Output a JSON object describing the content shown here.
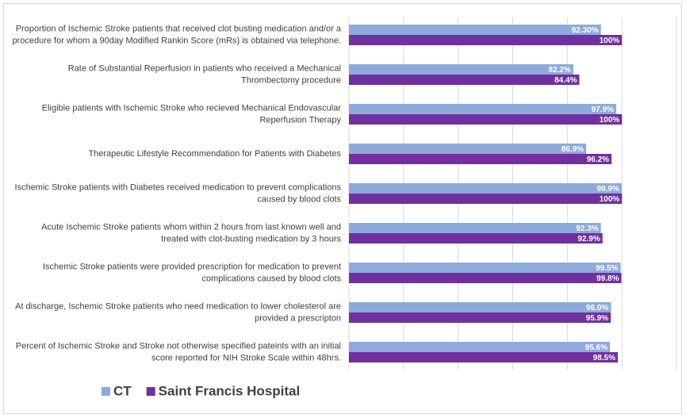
{
  "chart_data": {
    "type": "hbar",
    "categories": [
      [
        "Proportion of Ischemic Stroke patients that received clot busting medication and/or a",
        "procedure for whom a 90day Modified Rankin Score (mRs) is obtained via telephone."
      ],
      [
        "Rate of Substantial Reperfusion in patients who received a Mechanical",
        "Thrombectomy procedure"
      ],
      [
        "Eligible patients with Ischemic Stroke who recieved Mechanical Endovascular",
        "Reperfusion Therapy"
      ],
      [
        "Therapeutic Lifestyle Recommendation for Patients with Diabetes"
      ],
      [
        "Ischemic Stroke patients with Diabetes received medication to prevent complications",
        "caused by blood clots"
      ],
      [
        "Acute Ischemic Stroke patients whom within 2 hours from last known well and",
        "treated with clot-busting medication by 3 hours"
      ],
      [
        "Ischemic Stroke patients were provided prescription for medication to prevent",
        "complications caused by blood clots"
      ],
      [
        "At discharge, Ischemic Stroke patients who need medication to lower cholesterol are",
        "provided a prescripton"
      ],
      [
        "Percent of Ischemic Stroke and Stroke not otherwise specified pateints with an initial",
        "score reported for NIH Stroke Scale within 48hrs."
      ]
    ],
    "series": [
      {
        "name": "CT",
        "color": "#8eaadb",
        "values": [
          92.3,
          82.2,
          97.9,
          86.9,
          99.9,
          92.3,
          99.5,
          96.0,
          95.6
        ],
        "value_labels": [
          "92.30%",
          "82.2%",
          "97.9%",
          "86.9%",
          "99.9%",
          "92.3%",
          "99.5%",
          "96.0%",
          "95.6%"
        ]
      },
      {
        "name": "Saint Francis Hospital",
        "color": "#7030a0",
        "values": [
          100,
          84.4,
          100,
          96.2,
          100,
          92.9,
          99.8,
          95.9,
          98.5
        ],
        "value_labels": [
          "100%",
          "84.4%",
          "100%",
          "96.2%",
          "100%",
          "92.9%",
          "99.8%",
          "95.9%",
          "98.5%"
        ]
      }
    ],
    "xlim": [
      0,
      120
    ],
    "xticks": [
      0,
      20,
      40,
      60,
      80,
      100,
      120
    ],
    "grid": true,
    "legend": "bottom-left"
  }
}
